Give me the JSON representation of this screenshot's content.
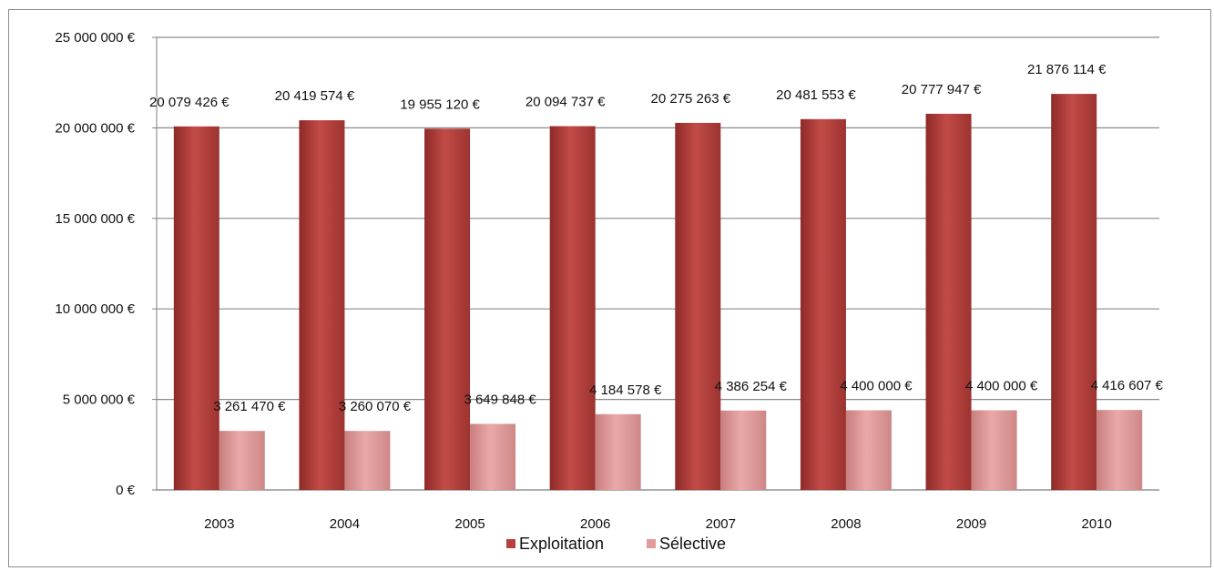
{
  "chart_data": {
    "type": "bar",
    "categories": [
      "2003",
      "2004",
      "2005",
      "2006",
      "2007",
      "2008",
      "2009",
      "2010"
    ],
    "series": [
      {
        "name": "Exploitation",
        "values": [
          20079426,
          20419574,
          19955120,
          20094737,
          20275263,
          20481553,
          20777947,
          21876114
        ],
        "labels": [
          "20 079 426 €",
          "20 419 574 €",
          "19 955 120 €",
          "20 094 737 €",
          "20 275 263 €",
          "20 481 553 €",
          "20 777 947 €",
          "21 876 114 €"
        ],
        "color": "#B5413E"
      },
      {
        "name": "Sélective",
        "values": [
          3261470,
          3260070,
          3649848,
          4184578,
          4386254,
          4400000,
          4400000,
          4416607
        ],
        "labels": [
          "3 261 470 €",
          "3 260 070 €",
          "3 649 848 €",
          "4 184 578 €",
          "4 386 254 €",
          "4 400 000 €",
          "4 400 000 €",
          "4 416 607 €"
        ],
        "color": "#E29A9A"
      }
    ],
    "y_ticks": [
      0,
      5000000,
      10000000,
      15000000,
      20000000,
      25000000
    ],
    "y_tick_labels": [
      "0 €",
      "5 000 000 €",
      "10 000 000 €",
      "15 000 000 €",
      "20 000 000 €",
      "25 000 000 €"
    ],
    "ylim": [
      0,
      25000000
    ],
    "grid": true,
    "legend_position": "bottom",
    "title": "",
    "xlabel": "",
    "ylabel": ""
  }
}
